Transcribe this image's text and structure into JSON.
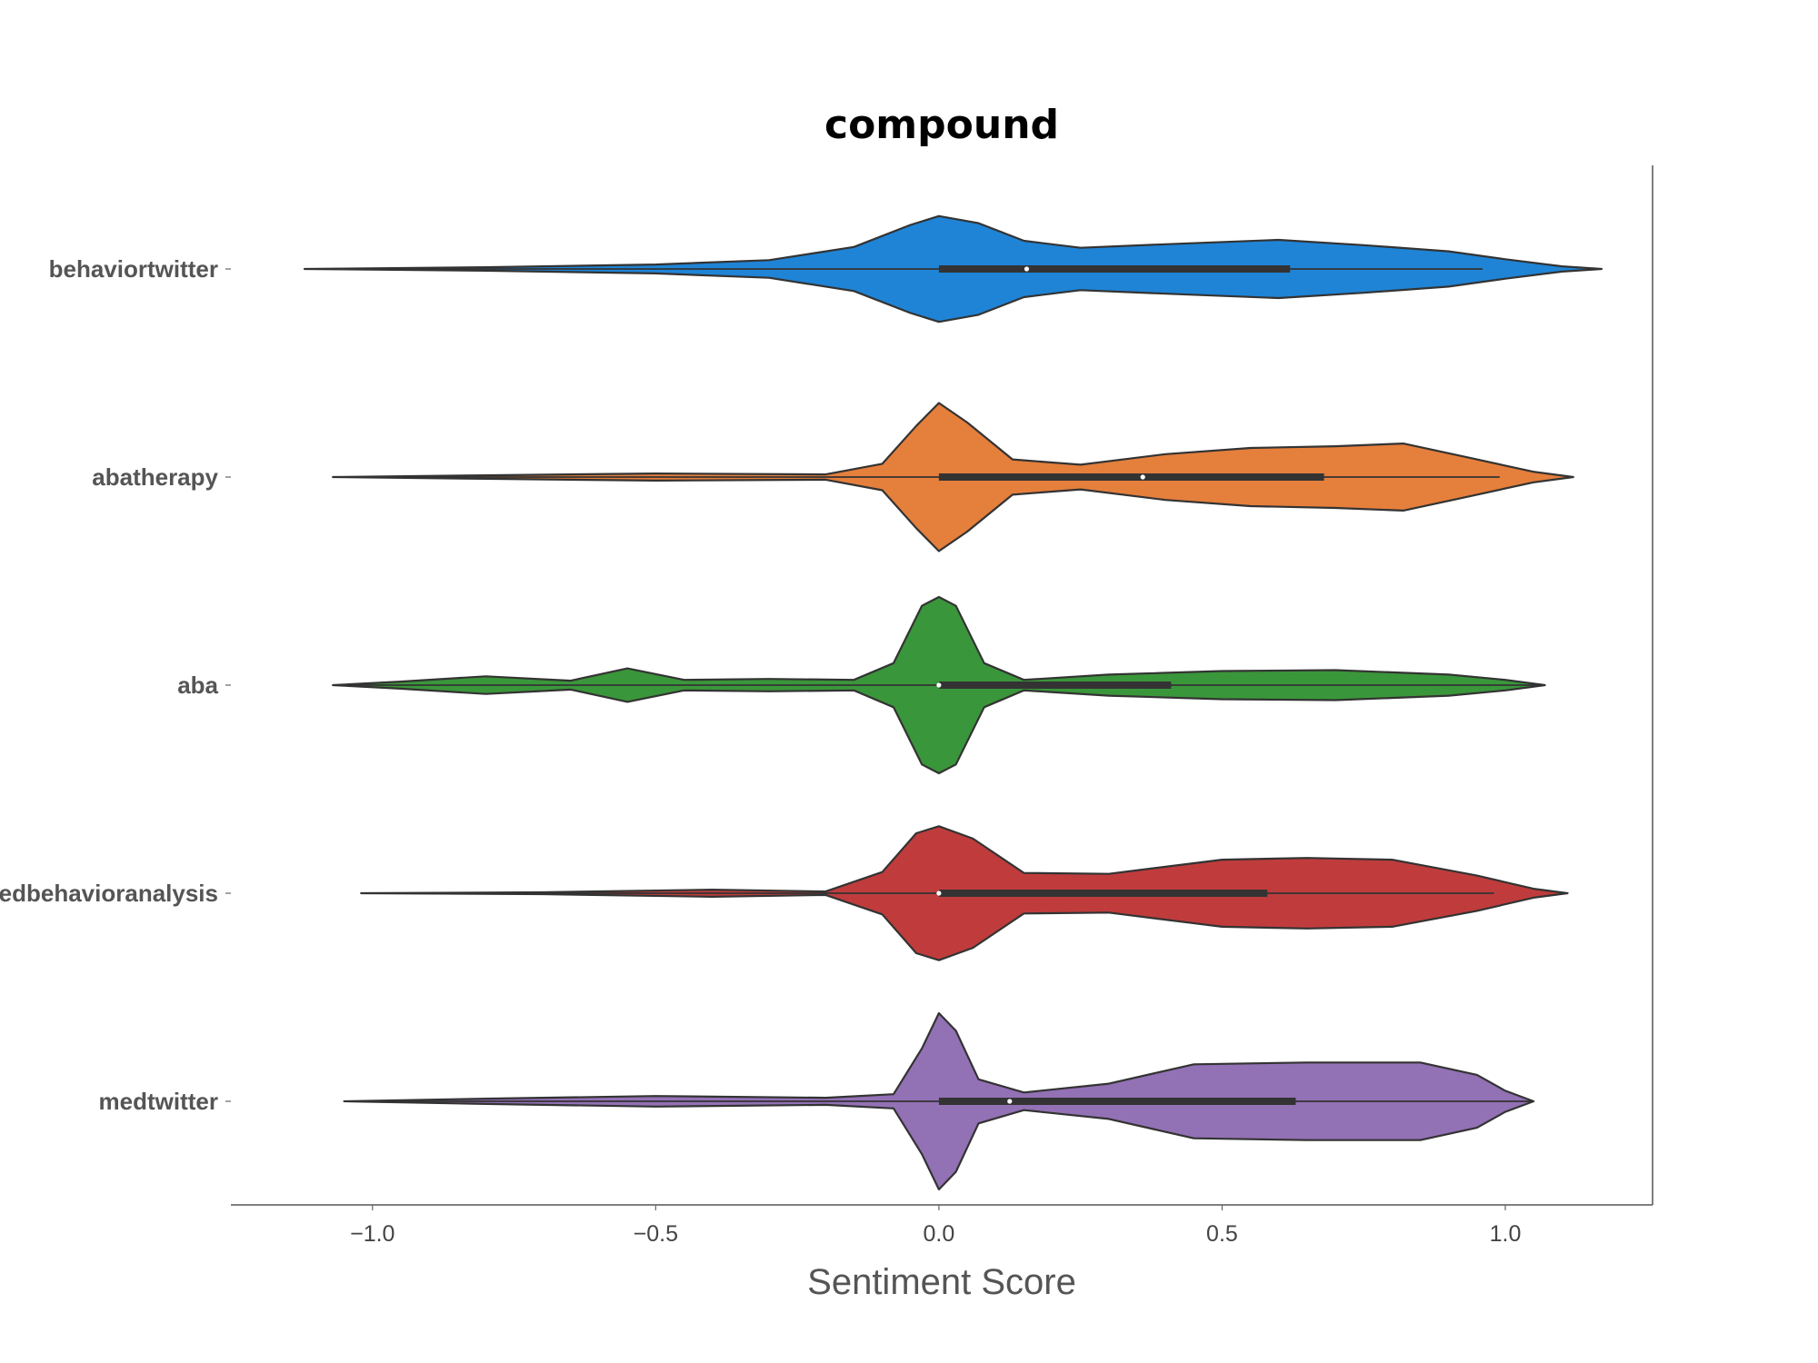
{
  "chart_data": {
    "type": "violin",
    "orientation": "horizontal",
    "title": "compound",
    "xlabel": "Sentiment Score",
    "ylabel": "",
    "xlim": [
      -1.25,
      1.26
    ],
    "xticks": [
      -1.0,
      -0.5,
      0.0,
      0.5,
      1.0
    ],
    "xtick_labels": [
      "−1.0",
      "−0.5",
      "0.0",
      "0.5",
      "1.0"
    ],
    "grid": false,
    "series": [
      {
        "name": "behaviortwitter",
        "color": "#1f84d6",
        "range": [
          -1.12,
          1.17
        ],
        "whisker": [
          -1.12,
          0.96
        ],
        "q1": 0.0,
        "median": 0.155,
        "q3": 0.62,
        "density": [
          [
            -1.12,
            0.0
          ],
          [
            -0.8,
            0.02
          ],
          [
            -0.5,
            0.05
          ],
          [
            -0.3,
            0.1
          ],
          [
            -0.15,
            0.25
          ],
          [
            -0.05,
            0.5
          ],
          [
            0.0,
            0.6
          ],
          [
            0.07,
            0.52
          ],
          [
            0.15,
            0.32
          ],
          [
            0.25,
            0.24
          ],
          [
            0.4,
            0.28
          ],
          [
            0.6,
            0.33
          ],
          [
            0.75,
            0.27
          ],
          [
            0.9,
            0.2
          ],
          [
            1.0,
            0.11
          ],
          [
            1.1,
            0.03
          ],
          [
            1.17,
            0.0
          ]
        ]
      },
      {
        "name": "abatherapy",
        "color": "#e57f3c",
        "range": [
          -1.07,
          1.12
        ],
        "whisker": [
          -1.07,
          0.99
        ],
        "q1": 0.0,
        "median": 0.36,
        "q3": 0.68,
        "density": [
          [
            -1.07,
            0.0
          ],
          [
            -0.8,
            0.02
          ],
          [
            -0.5,
            0.04
          ],
          [
            -0.2,
            0.03
          ],
          [
            -0.1,
            0.15
          ],
          [
            -0.04,
            0.58
          ],
          [
            0.0,
            0.84
          ],
          [
            0.05,
            0.62
          ],
          [
            0.13,
            0.2
          ],
          [
            0.25,
            0.14
          ],
          [
            0.4,
            0.26
          ],
          [
            0.55,
            0.33
          ],
          [
            0.7,
            0.35
          ],
          [
            0.82,
            0.38
          ],
          [
            0.95,
            0.2
          ],
          [
            1.05,
            0.06
          ],
          [
            1.12,
            0.0
          ]
        ]
      },
      {
        "name": "aba",
        "color": "#3a963a",
        "range": [
          -1.07,
          1.07
        ],
        "whisker": [
          -1.07,
          1.07
        ],
        "q1": 0.0,
        "median": 0.0,
        "q3": 0.41,
        "density": [
          [
            -1.07,
            0.0
          ],
          [
            -0.95,
            0.04
          ],
          [
            -0.8,
            0.1
          ],
          [
            -0.65,
            0.05
          ],
          [
            -0.55,
            0.19
          ],
          [
            -0.45,
            0.06
          ],
          [
            -0.3,
            0.07
          ],
          [
            -0.15,
            0.06
          ],
          [
            -0.08,
            0.25
          ],
          [
            -0.03,
            0.9
          ],
          [
            0.0,
            1.0
          ],
          [
            0.03,
            0.9
          ],
          [
            0.08,
            0.25
          ],
          [
            0.15,
            0.06
          ],
          [
            0.3,
            0.12
          ],
          [
            0.5,
            0.16
          ],
          [
            0.7,
            0.17
          ],
          [
            0.9,
            0.12
          ],
          [
            1.0,
            0.06
          ],
          [
            1.07,
            0.0
          ]
        ]
      },
      {
        "name": "appliedbehavioranalysis",
        "color": "#c03c3c",
        "range": [
          -1.02,
          1.11
        ],
        "whisker": [
          -1.02,
          0.98
        ],
        "q1": 0.0,
        "median": 0.0,
        "q3": 0.58,
        "density": [
          [
            -1.02,
            0.0
          ],
          [
            -0.7,
            0.01
          ],
          [
            -0.4,
            0.04
          ],
          [
            -0.2,
            0.02
          ],
          [
            -0.1,
            0.24
          ],
          [
            -0.04,
            0.68
          ],
          [
            0.0,
            0.76
          ],
          [
            0.06,
            0.62
          ],
          [
            0.15,
            0.23
          ],
          [
            0.3,
            0.22
          ],
          [
            0.5,
            0.38
          ],
          [
            0.65,
            0.4
          ],
          [
            0.8,
            0.38
          ],
          [
            0.95,
            0.2
          ],
          [
            1.05,
            0.05
          ],
          [
            1.11,
            0.0
          ]
        ]
      },
      {
        "name": "medtwitter",
        "color": "#9371b5",
        "range": [
          -1.05,
          1.05
        ],
        "whisker": [
          -1.05,
          1.05
        ],
        "q1": 0.0,
        "median": 0.125,
        "q3": 0.63,
        "density": [
          [
            -1.05,
            0.0
          ],
          [
            -0.8,
            0.03
          ],
          [
            -0.5,
            0.06
          ],
          [
            -0.2,
            0.04
          ],
          [
            -0.08,
            0.08
          ],
          [
            -0.03,
            0.6
          ],
          [
            0.0,
            1.0
          ],
          [
            0.03,
            0.8
          ],
          [
            0.07,
            0.25
          ],
          [
            0.15,
            0.1
          ],
          [
            0.3,
            0.2
          ],
          [
            0.45,
            0.42
          ],
          [
            0.65,
            0.44
          ],
          [
            0.85,
            0.44
          ],
          [
            0.95,
            0.3
          ],
          [
            1.0,
            0.12
          ],
          [
            1.05,
            0.0
          ]
        ]
      }
    ]
  }
}
